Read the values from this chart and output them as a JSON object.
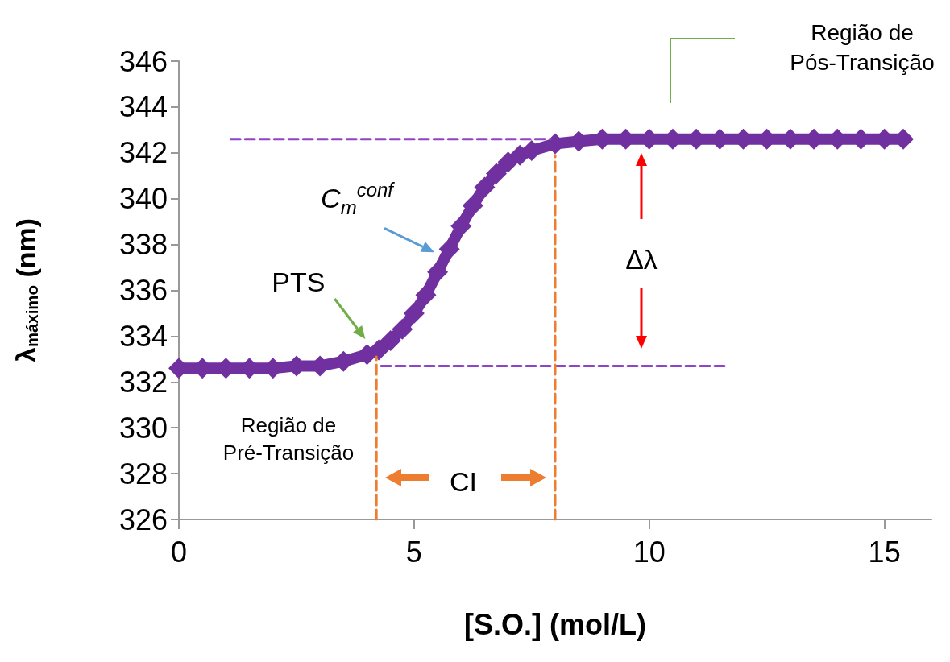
{
  "chart_data": {
    "type": "line",
    "xlabel": "[S.O.] (mol/L)",
    "ylabel": "λ$_{máximo}$ (nm)",
    "xlim": [
      0,
      16
    ],
    "xticks": [
      0,
      5,
      10,
      15
    ],
    "ylim": [
      326,
      346
    ],
    "yticks": [
      326,
      328,
      330,
      332,
      334,
      336,
      338,
      340,
      342,
      344,
      346
    ],
    "grid": false,
    "marker": "diamond",
    "series": [
      {
        "color": "#7030a0",
        "x": [
          0,
          0.5,
          1,
          1.5,
          2,
          2.5,
          3,
          3.5,
          4,
          4.25,
          4.5,
          4.75,
          5,
          5.25,
          5.5,
          5.75,
          6,
          6.25,
          6.5,
          6.75,
          7,
          7.25,
          7.5,
          8,
          8.5,
          9,
          9.5,
          10,
          10.5,
          11,
          11.5,
          12,
          12.5,
          13,
          13.5,
          14,
          14.5,
          15,
          15.4
        ],
        "values": [
          332.6,
          332.6,
          332.6,
          332.6,
          332.6,
          332.7,
          332.7,
          332.9,
          333.2,
          333.4,
          333.8,
          334.3,
          335.0,
          335.8,
          336.8,
          337.8,
          338.8,
          339.7,
          340.5,
          341.1,
          341.6,
          341.9,
          342.1,
          342.4,
          342.5,
          342.6,
          342.6,
          342.6,
          342.6,
          342.6,
          342.6,
          342.6,
          342.6,
          342.6,
          342.6,
          342.6,
          342.6,
          342.6,
          342.6
        ]
      },
      {
        "type": "line",
        "color": "#8e44c8",
        "line_style": "dashed",
        "marker": "none",
        "x": [
          1.1,
          7.9
        ],
        "values": [
          342.6,
          342.6
        ]
      },
      {
        "type": "line",
        "color": "#8e44c8",
        "line_style": "dashed",
        "marker": "none",
        "x": [
          4.3,
          11.6
        ],
        "values": [
          332.7,
          332.7
        ]
      },
      {
        "type": "line",
        "color": "#ed7d31",
        "line_style": "dashed",
        "marker": "none",
        "x": [
          4.2,
          4.2
        ],
        "values": [
          326,
          333.1
        ]
      },
      {
        "type": "line",
        "color": "#ed7d31",
        "line_style": "dashed",
        "marker": "none",
        "x": [
          8,
          8
        ],
        "values": [
          326,
          341.9
        ]
      }
    ],
    "annotations": [
      {
        "text": "PTS",
        "x": 4.1,
        "y": 333.1
      },
      {
        "text": "C$_{m}$$^{conf}$",
        "x": 5.5,
        "y": 337.2
      },
      "Δλ",
      "CI",
      "Região de\nPré-Transição",
      "Região de\nPós-Transição"
    ]
  }
}
